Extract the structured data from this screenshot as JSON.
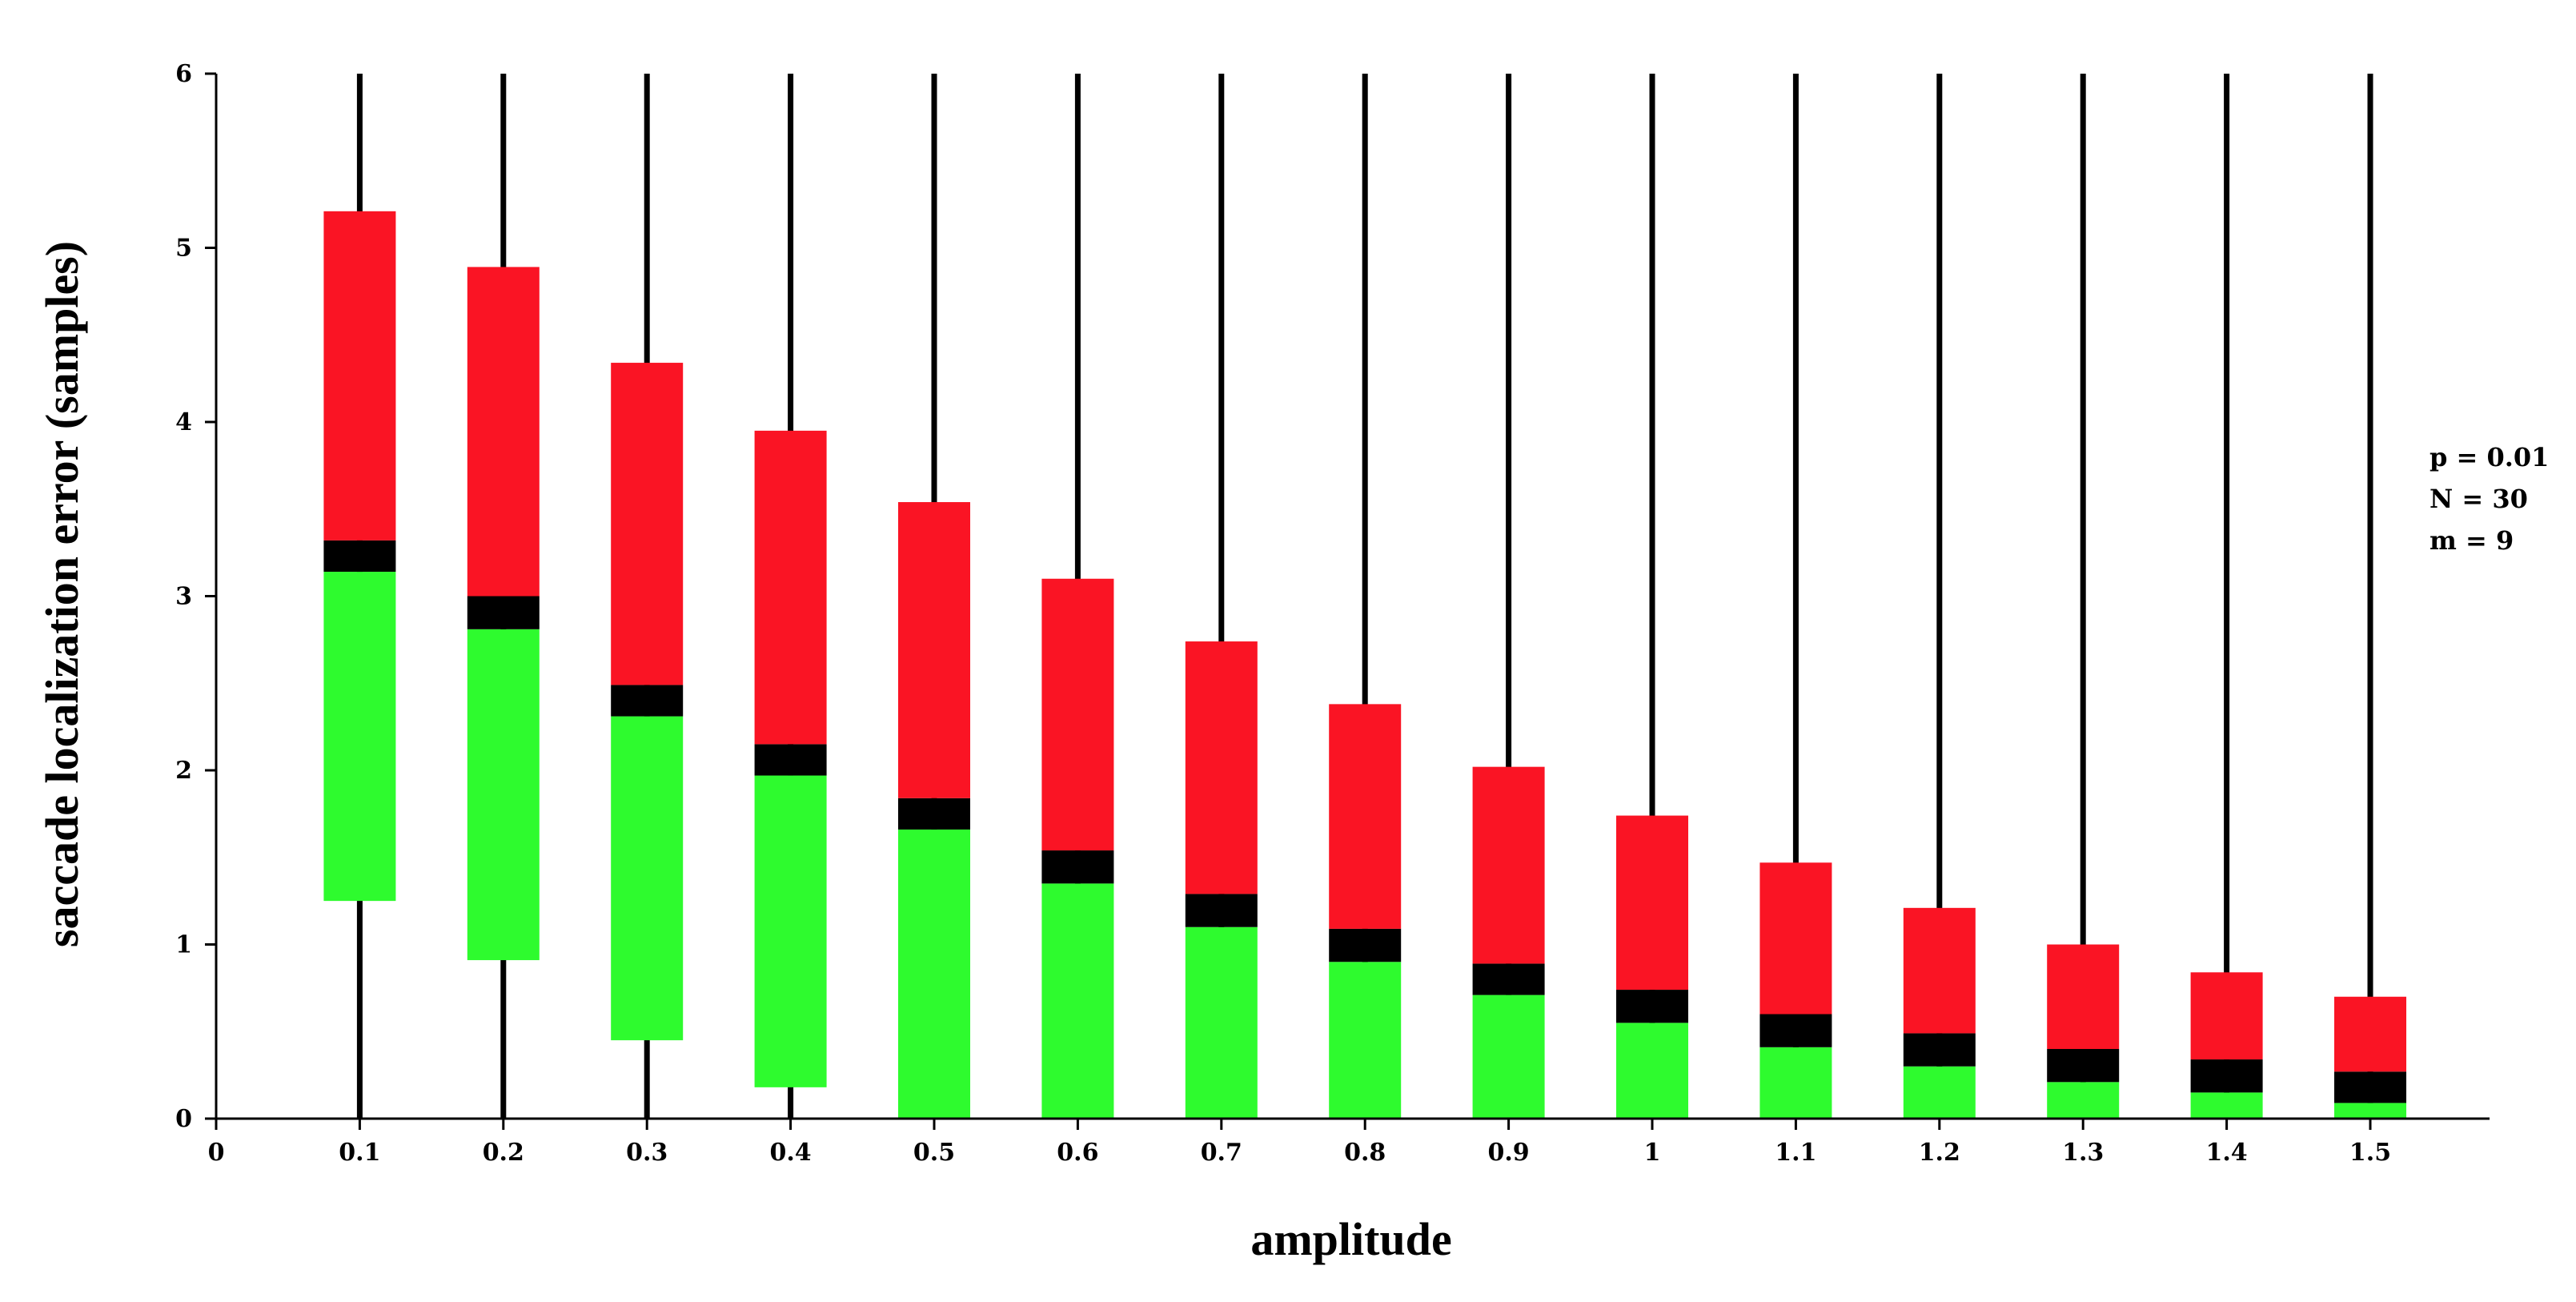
{
  "chart_data": {
    "type": "bar",
    "subtype": "stacked-range-with-median-band",
    "title": "",
    "xlabel": "amplitude",
    "ylabel": "saccade localization error (samples)",
    "xlim": [
      0,
      1.55
    ],
    "ylim": [
      0,
      6
    ],
    "x_ticks": [
      "0",
      "0.1",
      "0.2",
      "0.3",
      "0.4",
      "0.5",
      "0.6",
      "0.7",
      "0.8",
      "0.9",
      "1",
      "1.1",
      "1.2",
      "1.3",
      "1.4",
      "1.5"
    ],
    "y_ticks": [
      "0",
      "1",
      "2",
      "3",
      "4",
      "5",
      "6"
    ],
    "x": [
      0.1,
      0.2,
      0.3,
      0.4,
      0.5,
      0.6,
      0.7,
      0.8,
      0.9,
      1.0,
      1.1,
      1.2,
      1.3,
      1.4,
      1.5
    ],
    "whisker_low": [
      0,
      0,
      0,
      0,
      0,
      0,
      0,
      0,
      0,
      0,
      0,
      0,
      0,
      0,
      0
    ],
    "whisker_high": [
      6,
      6,
      6,
      6,
      6,
      6,
      6,
      6,
      6,
      6,
      6,
      6,
      6,
      6,
      6
    ],
    "series": [
      {
        "name": "lower (green)",
        "color": "#2efb2e",
        "low": [
          1.25,
          0.91,
          0.45,
          0.18,
          0,
          0,
          0,
          0,
          0,
          0,
          0,
          0,
          0,
          0,
          0
        ],
        "high": [
          3.14,
          2.81,
          2.31,
          1.97,
          1.66,
          1.35,
          1.1,
          0.9,
          0.71,
          0.55,
          0.41,
          0.3,
          0.21,
          0.15,
          0.09
        ]
      },
      {
        "name": "median band (black)",
        "color": "#000000",
        "low": [
          3.14,
          2.81,
          2.31,
          1.97,
          1.66,
          1.35,
          1.1,
          0.9,
          0.71,
          0.55,
          0.41,
          0.3,
          0.21,
          0.15,
          0.09
        ],
        "high": [
          3.32,
          3.0,
          2.49,
          2.15,
          1.84,
          1.54,
          1.29,
          1.09,
          0.89,
          0.74,
          0.6,
          0.49,
          0.4,
          0.34,
          0.27
        ]
      },
      {
        "name": "upper (red)",
        "color": "#fa1424",
        "low": [
          3.32,
          3.0,
          2.49,
          2.15,
          1.84,
          1.54,
          1.29,
          1.09,
          0.89,
          0.74,
          0.6,
          0.49,
          0.4,
          0.34,
          0.27
        ],
        "high": [
          5.21,
          4.89,
          4.34,
          3.95,
          3.54,
          3.1,
          2.74,
          2.38,
          2.02,
          1.74,
          1.47,
          1.21,
          1.0,
          0.84,
          0.7
        ]
      }
    ],
    "annotations": [
      "p = 0.01",
      "N = 30",
      "m = 9"
    ],
    "grid": false,
    "legend": "none"
  }
}
